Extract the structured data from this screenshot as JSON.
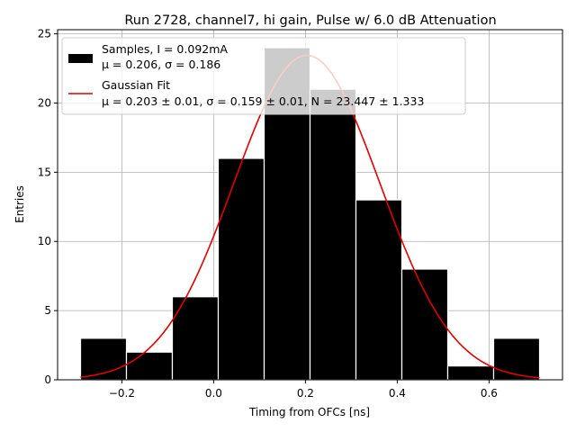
{
  "chart_data": {
    "type": "bar",
    "title": "Run 2728, channel7, hi gain, Pulse w/ 6.0 dB Attenuation",
    "xlabel": "Timing from OFCs [ns]",
    "ylabel": "Entries",
    "xlim": [
      -0.34,
      0.76
    ],
    "ylim": [
      0,
      25.3
    ],
    "xticks": [
      -0.2,
      0.0,
      0.2,
      0.4,
      0.6
    ],
    "xtick_labels": [
      "−0.2",
      "0.0",
      "0.2",
      "0.4",
      "0.6"
    ],
    "yticks": [
      0,
      5,
      10,
      15,
      20,
      25
    ],
    "ytick_labels": [
      "0",
      "5",
      "10",
      "15",
      "20",
      "25"
    ],
    "grid": true,
    "legend_position": "upper-left",
    "bin_edges": [
      -0.29,
      -0.19,
      -0.09,
      0.01,
      0.11,
      0.21,
      0.31,
      0.41,
      0.51,
      0.61,
      0.71
    ],
    "counts": [
      3,
      2,
      6,
      16,
      24,
      21,
      13,
      8,
      1,
      3
    ],
    "fit": {
      "mu": 0.203,
      "sigma": 0.159,
      "N": 23.447,
      "color": "#e00000"
    },
    "bar_color": "#000000",
    "bar_edge_color": "#ffffff",
    "legend": {
      "samples_line1": "Samples, I = 0.092mA",
      "samples_line2": "μ = 0.206, σ = 0.186",
      "fit_line1": "Gaussian Fit",
      "fit_line2": "μ = 0.203 ± 0.01, σ = 0.159 ± 0.01, N = 23.447 ± 1.333"
    }
  }
}
